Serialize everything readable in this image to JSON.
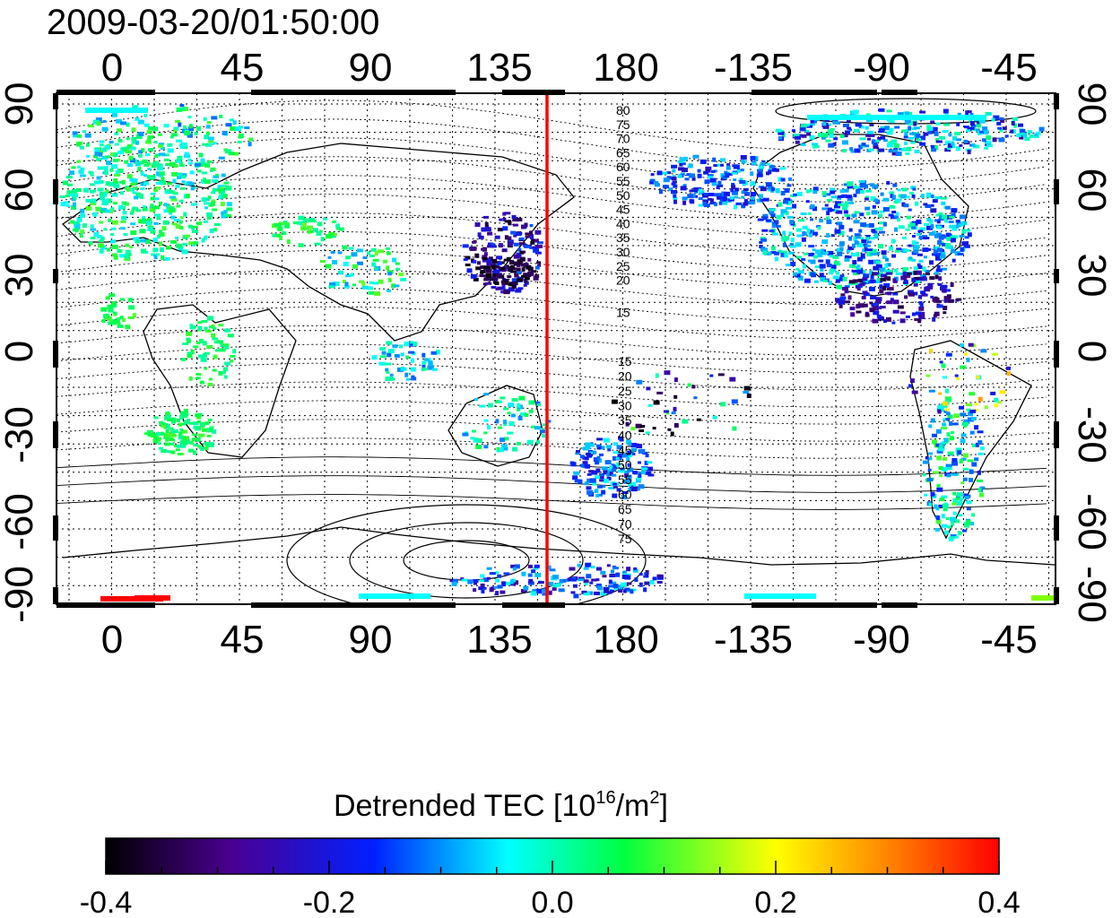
{
  "title": "2009-03-20/01:50:00",
  "lon_ticks": [
    "0",
    "45",
    "90",
    "135",
    "180",
    "-135",
    "-90",
    "-45"
  ],
  "lat_ticks_left": [
    "90",
    "60",
    "30",
    "0",
    "-30",
    "-60",
    "-90"
  ],
  "lat_ticks_right": [
    "90",
    "60",
    "30",
    "0",
    "-30",
    "-60",
    "-90"
  ],
  "contour_labels_north": [
    "80",
    "75",
    "70",
    "65",
    "60",
    "55",
    "50",
    "45",
    "40",
    "35",
    "30",
    "25",
    "20",
    "15"
  ],
  "contour_labels_south": [
    "15",
    "20",
    "25",
    "30",
    "35",
    "40",
    "45",
    "50",
    "55",
    "60",
    "65",
    "70",
    "75"
  ],
  "marker_line": {
    "lon": 150,
    "color": "#ff0000"
  },
  "colorbar": {
    "title_prefix": "Detrended TEC  [10",
    "title_sup1": "16",
    "title_mid": "/m",
    "title_sup2": "2",
    "title_suffix": "]",
    "tick_labels": [
      "-0.4",
      "-0.2",
      "0.0",
      "0.2",
      "0.4"
    ],
    "min": -0.4,
    "max": 0.4,
    "colors": [
      "#000000",
      "#4a0090",
      "#0020ff",
      "#00ffff",
      "#00ff40",
      "#ffff00",
      "#ff8000",
      "#ff0000"
    ]
  }
}
